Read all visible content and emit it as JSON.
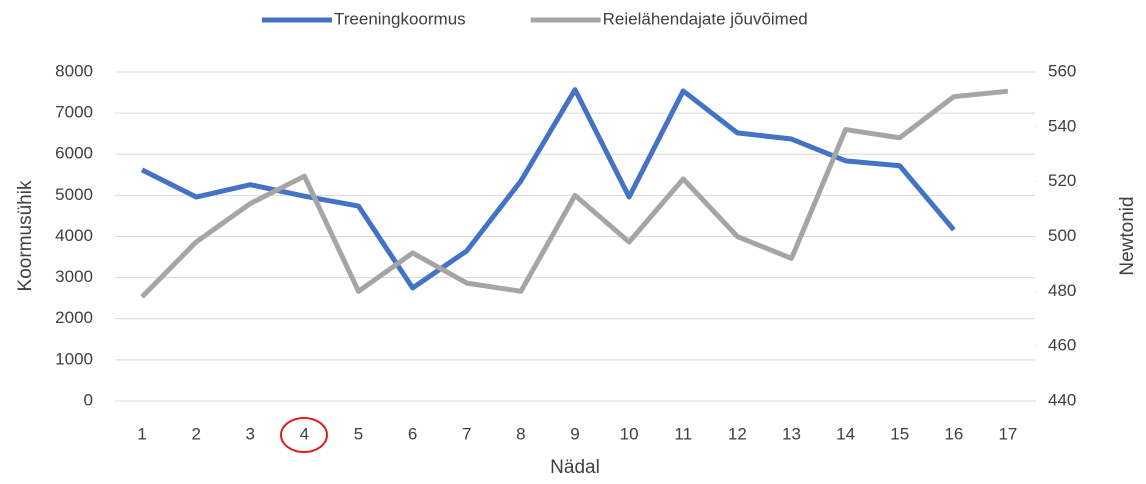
{
  "chart_data": {
    "type": "line",
    "categories": [
      "1",
      "2",
      "3",
      "4",
      "5",
      "6",
      "7",
      "8",
      "9",
      "10",
      "11",
      "12",
      "13",
      "14",
      "15",
      "16",
      "17"
    ],
    "series": [
      {
        "name": "Treeningkoormus",
        "color": "#4472c4",
        "axis": "y",
        "values": [
          5620,
          4960,
          5260,
          4980,
          4740,
          2750,
          3650,
          5350,
          7570,
          4960,
          7540,
          6520,
          6370,
          5840,
          5720,
          4160,
          null
        ]
      },
      {
        "name": "Reielähendajate jõuvõimed",
        "color": "#a5a5a5",
        "axis": "y2",
        "values": [
          478,
          498,
          512,
          522,
          480,
          494,
          483,
          480,
          515,
          498,
          521,
          500,
          492,
          539,
          536,
          551,
          553
        ]
      }
    ],
    "ylabel": "Koormusühik",
    "y2label": "Newtonid",
    "xlabel": "Nädal",
    "ylim": [
      0,
      8000
    ],
    "yticks": [
      0,
      1000,
      2000,
      3000,
      4000,
      5000,
      6000,
      7000,
      8000
    ],
    "y2lim": [
      440,
      560
    ],
    "y2ticks": [
      440,
      460,
      480,
      500,
      520,
      540,
      560
    ],
    "grid": true,
    "legend": "top"
  }
}
